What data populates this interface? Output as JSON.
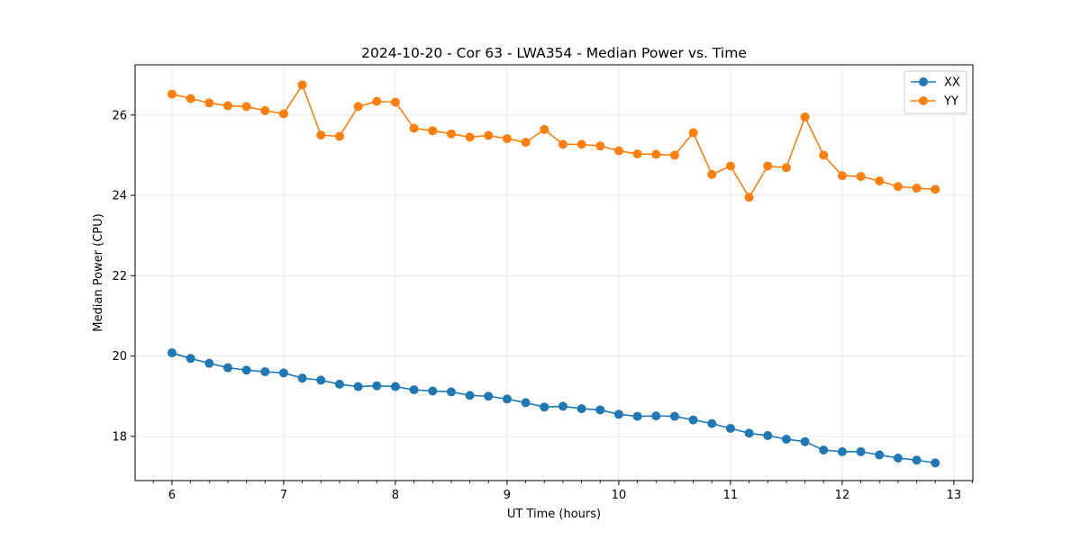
{
  "chart_data": {
    "type": "line",
    "title": "2024-10-20 - Cor 63 - LWA354 - Median Power vs. Time",
    "xlabel": "UT Time (hours)",
    "ylabel": "Median Power (CPU)",
    "xlim": [
      5.67,
      13.17
    ],
    "ylim": [
      16.9,
      27.25
    ],
    "xticks": [
      6,
      7,
      8,
      9,
      10,
      11,
      12,
      13
    ],
    "xtick_labels": [
      "6",
      "7",
      "8",
      "9",
      "10",
      "11",
      "12",
      "13"
    ],
    "yticks": [
      18,
      20,
      22,
      24,
      26
    ],
    "ytick_labels": [
      "18",
      "20",
      "22",
      "24",
      "26"
    ],
    "grid": true,
    "legend_position": "top-right",
    "x": [
      6.0,
      6.1667,
      6.3333,
      6.5,
      6.6667,
      6.8333,
      7.0,
      7.1667,
      7.3333,
      7.5,
      7.6667,
      7.8333,
      8.0,
      8.1667,
      8.3333,
      8.5,
      8.6667,
      8.8333,
      9.0,
      9.1667,
      9.3333,
      9.5,
      9.6667,
      9.8333,
      10.0,
      10.1667,
      10.3333,
      10.5,
      10.6667,
      10.8333,
      11.0,
      11.1667,
      11.3333,
      11.5,
      11.6667,
      11.8333,
      12.0,
      12.1667,
      12.3333,
      12.5,
      12.6667,
      12.8333
    ],
    "series": [
      {
        "name": "XX",
        "color": "#1f77b4",
        "values": [
          20.08,
          19.94,
          19.82,
          19.71,
          19.65,
          19.61,
          19.58,
          19.45,
          19.4,
          19.3,
          19.24,
          19.26,
          19.24,
          19.16,
          19.13,
          19.11,
          19.02,
          19.0,
          18.93,
          18.84,
          18.73,
          18.75,
          18.69,
          18.66,
          18.55,
          18.5,
          18.51,
          18.5,
          18.41,
          18.32,
          18.2,
          18.08,
          18.02,
          17.93,
          17.87,
          17.66,
          17.62,
          17.62,
          17.54,
          17.46,
          17.41,
          17.34
        ]
      },
      {
        "name": "YY",
        "color": "#ff7f0e",
        "values": [
          26.52,
          26.41,
          26.3,
          26.23,
          26.21,
          26.11,
          26.03,
          26.75,
          25.5,
          25.47,
          26.21,
          26.34,
          26.32,
          25.67,
          25.61,
          25.53,
          25.45,
          25.49,
          25.41,
          25.32,
          25.64,
          25.27,
          25.27,
          25.23,
          25.11,
          25.03,
          25.02,
          25.0,
          25.56,
          24.52,
          24.73,
          23.95,
          24.73,
          24.69,
          25.95,
          25.0,
          24.49,
          24.47,
          24.36,
          24.22,
          24.18,
          24.15
        ]
      }
    ]
  }
}
